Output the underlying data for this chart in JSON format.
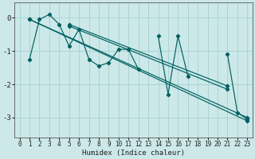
{
  "xlabel": "Humidex (Indice chaleur)",
  "bg_color": "#cce8e8",
  "grid_color": "#aad4d4",
  "line_color": "#006060",
  "xlim": [
    -0.5,
    23.5
  ],
  "ylim": [
    -3.6,
    0.45
  ],
  "yticks": [
    0,
    -1,
    -2,
    -3
  ],
  "xticks": [
    0,
    1,
    2,
    3,
    4,
    5,
    6,
    7,
    8,
    9,
    10,
    11,
    12,
    13,
    14,
    15,
    16,
    17,
    18,
    19,
    20,
    21,
    22,
    23
  ],
  "zigzag": [
    null,
    -1.25,
    -0.05,
    0.1,
    -0.2,
    -0.85,
    -0.35,
    -1.25,
    -1.45,
    -1.35,
    -0.95,
    -0.95,
    -1.55,
    null,
    -0.55,
    -2.3,
    -0.55,
    -1.75,
    null,
    null,
    null,
    -1.1,
    -2.85,
    -3.05
  ],
  "trend_lines": [
    {
      "x0": 1,
      "y0": -0.05,
      "x1": 23,
      "y1": -3.0
    },
    {
      "x0": 1,
      "y0": -0.05,
      "x1": 23,
      "y1": -3.1
    },
    {
      "x0": 5,
      "y0": -0.2,
      "x1": 21,
      "y1": -2.05
    },
    {
      "x0": 5,
      "y0": -0.25,
      "x1": 21,
      "y1": -2.15
    }
  ]
}
